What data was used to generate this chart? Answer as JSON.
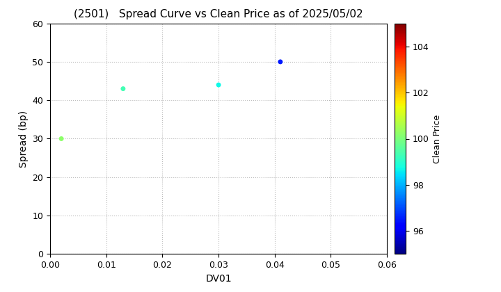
{
  "title": "(2501)   Spread Curve vs Clean Price as of 2025/05/02",
  "xlabel": "DV01",
  "ylabel": "Spread (bp)",
  "colorbar_label": "Clean Price",
  "xlim": [
    0.0,
    0.06
  ],
  "ylim": [
    0,
    60
  ],
  "xticks": [
    0.0,
    0.01,
    0.02,
    0.03,
    0.04,
    0.05,
    0.06
  ],
  "yticks": [
    0,
    10,
    20,
    30,
    40,
    50,
    60
  ],
  "cmap_min": 95,
  "cmap_max": 105,
  "colorbar_ticks": [
    96,
    98,
    100,
    102,
    104
  ],
  "points": [
    {
      "dv01": 0.002,
      "spread": 30,
      "clean_price": 100.2
    },
    {
      "dv01": 0.013,
      "spread": 43,
      "clean_price": 99.3
    },
    {
      "dv01": 0.03,
      "spread": 44,
      "clean_price": 98.7
    },
    {
      "dv01": 0.041,
      "spread": 50,
      "clean_price": 96.5
    }
  ],
  "marker_size": 25,
  "grid_color": "#bbbbbb",
  "bg_color": "#ffffff",
  "title_fontsize": 11,
  "axis_fontsize": 10,
  "cbar_fontsize": 9
}
